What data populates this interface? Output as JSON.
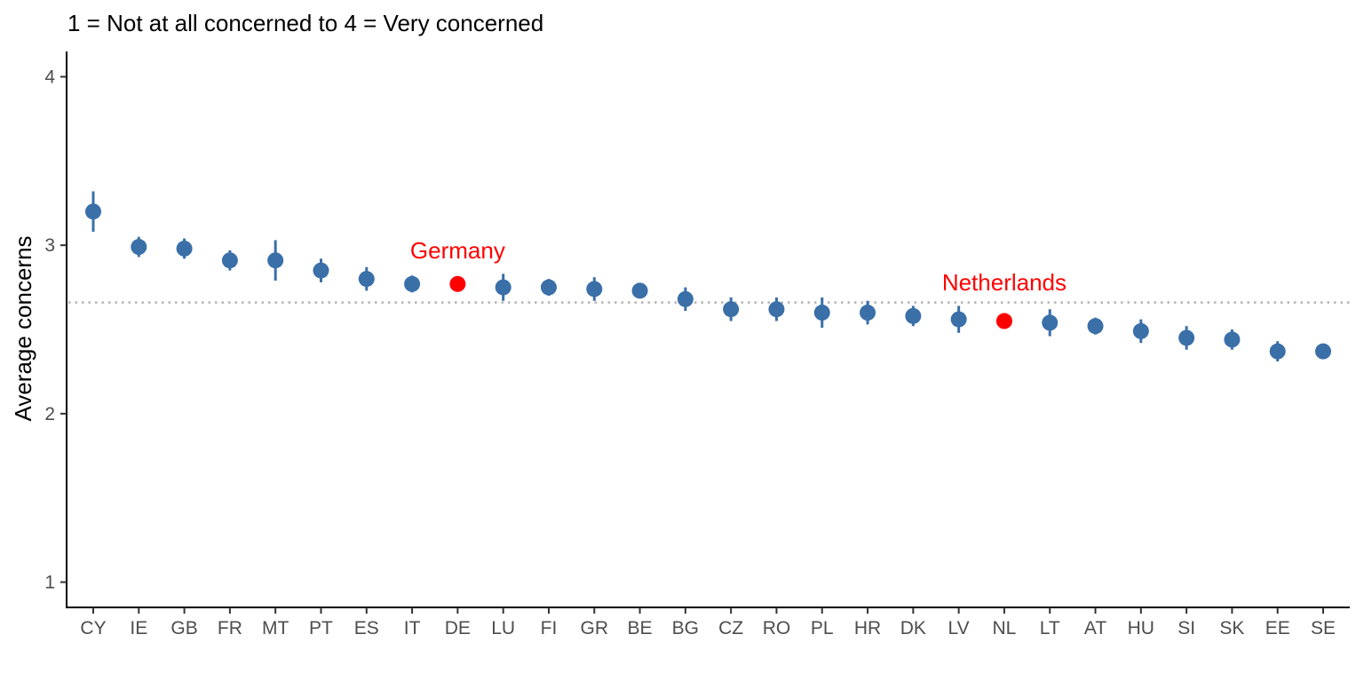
{
  "chart_data": {
    "type": "scatter",
    "title": "1 = Not at all concerned to 4 = Very concerned",
    "xlabel": "",
    "ylabel": "Average concerns",
    "ylim": [
      0.85,
      4.15
    ],
    "yticks": [
      1,
      2,
      3,
      4
    ],
    "grid": false,
    "legend": "none",
    "reference_line": {
      "y": 2.66,
      "style": "dotted",
      "color": "#b3b3b3"
    },
    "colors": {
      "point": "#3a6fa8",
      "highlight": "#ff0000",
      "axis": "#000000"
    },
    "categories": [
      "CY",
      "IE",
      "GB",
      "FR",
      "MT",
      "PT",
      "ES",
      "IT",
      "DE",
      "LU",
      "FI",
      "GR",
      "BE",
      "BG",
      "CZ",
      "RO",
      "PL",
      "HR",
      "DK",
      "LV",
      "NL",
      "LT",
      "AT",
      "HU",
      "SI",
      "SK",
      "EE",
      "SE"
    ],
    "values": [
      3.2,
      2.99,
      2.98,
      2.91,
      2.91,
      2.85,
      2.8,
      2.77,
      2.77,
      2.75,
      2.75,
      2.74,
      2.73,
      2.68,
      2.62,
      2.62,
      2.6,
      2.6,
      2.58,
      2.56,
      2.55,
      2.54,
      2.52,
      2.49,
      2.45,
      2.44,
      2.37,
      2.37
    ],
    "lower": [
      3.08,
      2.93,
      2.92,
      2.85,
      2.79,
      2.78,
      2.73,
      2.72,
      2.74,
      2.67,
      2.7,
      2.67,
      2.69,
      2.61,
      2.55,
      2.55,
      2.51,
      2.53,
      2.52,
      2.48,
      2.52,
      2.46,
      2.47,
      2.42,
      2.38,
      2.38,
      2.31,
      2.34
    ],
    "upper": [
      3.32,
      3.05,
      3.04,
      2.97,
      3.03,
      2.92,
      2.87,
      2.82,
      2.8,
      2.83,
      2.8,
      2.81,
      2.77,
      2.75,
      2.69,
      2.69,
      2.69,
      2.67,
      2.64,
      2.64,
      2.58,
      2.62,
      2.57,
      2.56,
      2.52,
      2.5,
      2.43,
      2.4
    ],
    "highlighted": [
      "DE",
      "NL"
    ],
    "annotations": [
      {
        "text": "Germany",
        "category": "DE",
        "y": 2.97
      },
      {
        "text": "Netherlands",
        "category": "NL",
        "y": 2.78
      }
    ]
  }
}
